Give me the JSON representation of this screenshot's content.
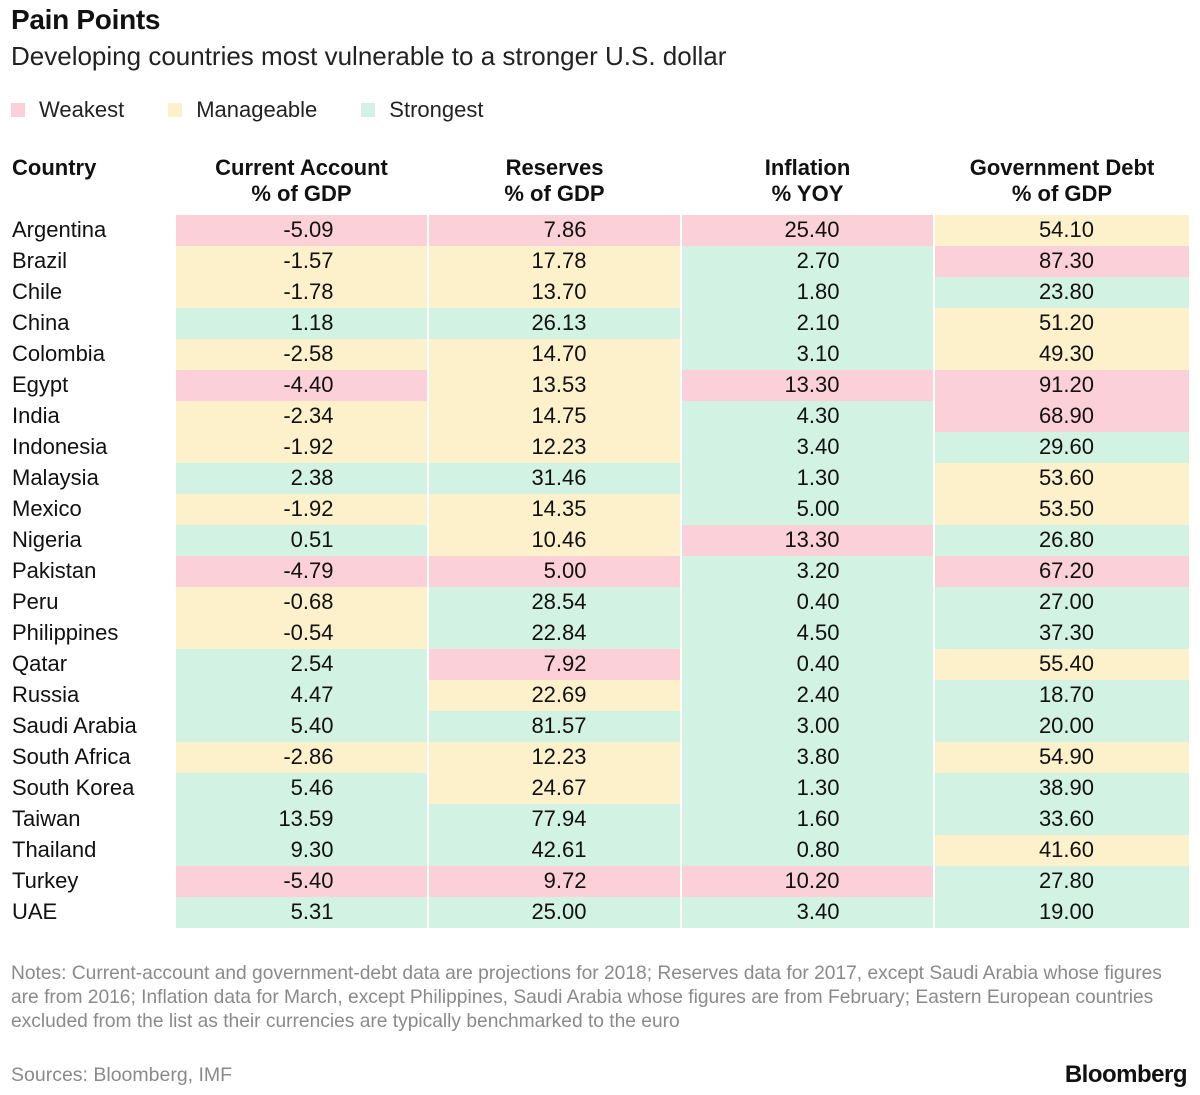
{
  "chart_data": {
    "type": "table",
    "title": "Pain Points",
    "subtitle": "Developing countries most vulnerable to a stronger U.S. dollar",
    "legend": [
      {
        "key": "W",
        "label": "Weakest",
        "color": "#fbd0d8"
      },
      {
        "key": "M",
        "label": "Manageable",
        "color": "#fdf1cc"
      },
      {
        "key": "S",
        "label": "Strongest",
        "color": "#d2f2e4"
      }
    ],
    "columns": [
      {
        "line1": "Country",
        "line2": ""
      },
      {
        "line1": "Current Account",
        "line2": "% of GDP"
      },
      {
        "line1": "Reserves",
        "line2": "% of GDP"
      },
      {
        "line1": "Inflation",
        "line2": "% YOY"
      },
      {
        "line1": "Government Debt",
        "line2": "% of GDP"
      }
    ],
    "rows": [
      {
        "country": "Argentina",
        "values": [
          "-5.09",
          "7.86",
          "25.40",
          "54.10"
        ],
        "rating": [
          "W",
          "W",
          "W",
          "M"
        ]
      },
      {
        "country": "Brazil",
        "values": [
          "-1.57",
          "17.78",
          "2.70",
          "87.30"
        ],
        "rating": [
          "M",
          "M",
          "S",
          "W"
        ]
      },
      {
        "country": "Chile",
        "values": [
          "-1.78",
          "13.70",
          "1.80",
          "23.80"
        ],
        "rating": [
          "M",
          "M",
          "S",
          "S"
        ]
      },
      {
        "country": "China",
        "values": [
          "1.18",
          "26.13",
          "2.10",
          "51.20"
        ],
        "rating": [
          "S",
          "S",
          "S",
          "M"
        ]
      },
      {
        "country": "Colombia",
        "values": [
          "-2.58",
          "14.70",
          "3.10",
          "49.30"
        ],
        "rating": [
          "M",
          "M",
          "S",
          "M"
        ]
      },
      {
        "country": "Egypt",
        "values": [
          "-4.40",
          "13.53",
          "13.30",
          "91.20"
        ],
        "rating": [
          "W",
          "M",
          "W",
          "W"
        ]
      },
      {
        "country": "India",
        "values": [
          "-2.34",
          "14.75",
          "4.30",
          "68.90"
        ],
        "rating": [
          "M",
          "M",
          "S",
          "W"
        ]
      },
      {
        "country": "Indonesia",
        "values": [
          "-1.92",
          "12.23",
          "3.40",
          "29.60"
        ],
        "rating": [
          "M",
          "M",
          "S",
          "S"
        ]
      },
      {
        "country": "Malaysia",
        "values": [
          "2.38",
          "31.46",
          "1.30",
          "53.60"
        ],
        "rating": [
          "S",
          "S",
          "S",
          "M"
        ]
      },
      {
        "country": "Mexico",
        "values": [
          "-1.92",
          "14.35",
          "5.00",
          "53.50"
        ],
        "rating": [
          "M",
          "M",
          "S",
          "M"
        ]
      },
      {
        "country": "Nigeria",
        "values": [
          "0.51",
          "10.46",
          "13.30",
          "26.80"
        ],
        "rating": [
          "S",
          "M",
          "W",
          "S"
        ]
      },
      {
        "country": "Pakistan",
        "values": [
          "-4.79",
          "5.00",
          "3.20",
          "67.20"
        ],
        "rating": [
          "W",
          "W",
          "S",
          "W"
        ]
      },
      {
        "country": "Peru",
        "values": [
          "-0.68",
          "28.54",
          "0.40",
          "27.00"
        ],
        "rating": [
          "M",
          "S",
          "S",
          "S"
        ]
      },
      {
        "country": "Philippines",
        "values": [
          "-0.54",
          "22.84",
          "4.50",
          "37.30"
        ],
        "rating": [
          "M",
          "S",
          "S",
          "S"
        ]
      },
      {
        "country": "Qatar",
        "values": [
          "2.54",
          "7.92",
          "0.40",
          "55.40"
        ],
        "rating": [
          "S",
          "W",
          "S",
          "M"
        ]
      },
      {
        "country": "Russia",
        "values": [
          "4.47",
          "22.69",
          "2.40",
          "18.70"
        ],
        "rating": [
          "S",
          "M",
          "S",
          "S"
        ]
      },
      {
        "country": "Saudi Arabia",
        "values": [
          "5.40",
          "81.57",
          "3.00",
          "20.00"
        ],
        "rating": [
          "S",
          "S",
          "S",
          "S"
        ]
      },
      {
        "country": "South Africa",
        "values": [
          "-2.86",
          "12.23",
          "3.80",
          "54.90"
        ],
        "rating": [
          "M",
          "M",
          "S",
          "M"
        ]
      },
      {
        "country": "South Korea",
        "values": [
          "5.46",
          "24.67",
          "1.30",
          "38.90"
        ],
        "rating": [
          "S",
          "M",
          "S",
          "S"
        ]
      },
      {
        "country": "Taiwan",
        "values": [
          "13.59",
          "77.94",
          "1.60",
          "33.60"
        ],
        "rating": [
          "S",
          "S",
          "S",
          "S"
        ]
      },
      {
        "country": "Thailand",
        "values": [
          "9.30",
          "42.61",
          "0.80",
          "41.60"
        ],
        "rating": [
          "S",
          "S",
          "S",
          "M"
        ]
      },
      {
        "country": "Turkey",
        "values": [
          "-5.40",
          "9.72",
          "10.20",
          "27.80"
        ],
        "rating": [
          "W",
          "W",
          "W",
          "S"
        ]
      },
      {
        "country": "UAE",
        "values": [
          "5.31",
          "25.00",
          "3.40",
          "19.00"
        ],
        "rating": [
          "S",
          "S",
          "S",
          "S"
        ]
      }
    ],
    "notes": "Notes: Current-account and government-debt data are projections for 2018; Reserves data for 2017, except Saudi Arabia whose figures are from 2016; Inflation data for March, except Philippines, Saudi Arabia whose figures are from February; Eastern European countries excluded from the list as their currencies are typically benchmarked to the euro",
    "source": "Sources: Bloomberg, IMF",
    "brand": "Bloomberg"
  }
}
